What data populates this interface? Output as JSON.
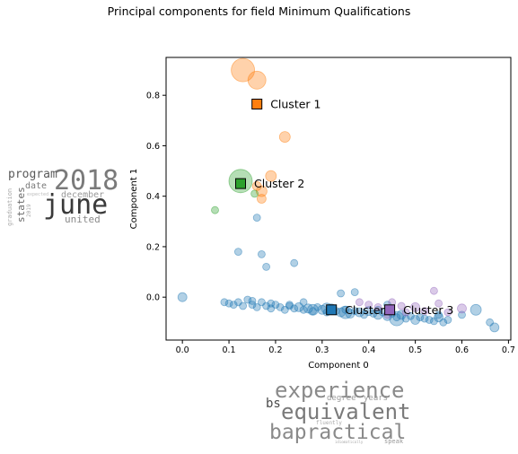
{
  "figure_title": "Principal components for field Minimum Qualifications",
  "chart_data": {
    "type": "scatter",
    "title": "Principal components for field Minimum Qualifications",
    "xlabel": "Component 0",
    "ylabel": "Component 1",
    "xlim": [
      -0.035,
      0.705
    ],
    "ylim": [
      -0.17,
      0.95
    ],
    "xticks": [
      0.0,
      0.1,
      0.2,
      0.3,
      0.4,
      0.5,
      0.6,
      0.7
    ],
    "yticks": [
      0.0,
      0.2,
      0.4,
      0.6,
      0.8
    ],
    "xtick_labels": [
      "0.0",
      "0.1",
      "0.2",
      "0.3",
      "0.4",
      "0.5",
      "0.6",
      "0.7"
    ],
    "ytick_labels": [
      "0.0",
      "0.2",
      "0.4",
      "0.6",
      "0.8"
    ],
    "grid": false,
    "series": [
      {
        "color": "#1f77b4",
        "points": [
          [
            0.0,
            0.0,
            5
          ],
          [
            0.09,
            -0.02,
            4
          ],
          [
            0.1,
            -0.025,
            4
          ],
          [
            0.11,
            -0.03,
            4
          ],
          [
            0.12,
            -0.02,
            4
          ],
          [
            0.13,
            -0.035,
            4
          ],
          [
            0.14,
            -0.01,
            4
          ],
          [
            0.15,
            -0.03,
            4
          ],
          [
            0.16,
            -0.04,
            4
          ],
          [
            0.17,
            -0.02,
            4
          ],
          [
            0.18,
            -0.035,
            4
          ],
          [
            0.19,
            -0.045,
            4
          ],
          [
            0.2,
            -0.03,
            4
          ],
          [
            0.21,
            -0.04,
            4
          ],
          [
            0.22,
            -0.05,
            4
          ],
          [
            0.23,
            -0.035,
            4
          ],
          [
            0.24,
            -0.045,
            4
          ],
          [
            0.25,
            -0.04,
            5
          ],
          [
            0.26,
            -0.05,
            4
          ],
          [
            0.27,
            -0.045,
            5
          ],
          [
            0.28,
            -0.055,
            4
          ],
          [
            0.29,
            -0.04,
            4
          ],
          [
            0.3,
            -0.05,
            5
          ],
          [
            0.31,
            -0.06,
            4
          ],
          [
            0.32,
            -0.045,
            5
          ],
          [
            0.33,
            -0.055,
            4
          ],
          [
            0.34,
            -0.06,
            5
          ],
          [
            0.35,
            -0.05,
            4
          ],
          [
            0.36,
            -0.065,
            5
          ],
          [
            0.37,
            -0.055,
            4
          ],
          [
            0.38,
            -0.06,
            5
          ],
          [
            0.39,
            -0.07,
            4
          ],
          [
            0.4,
            -0.055,
            5
          ],
          [
            0.41,
            -0.065,
            4
          ],
          [
            0.42,
            -0.07,
            5
          ],
          [
            0.43,
            -0.06,
            4
          ],
          [
            0.44,
            -0.075,
            5
          ],
          [
            0.45,
            -0.065,
            4
          ],
          [
            0.46,
            -0.08,
            4
          ],
          [
            0.47,
            -0.07,
            5
          ],
          [
            0.48,
            -0.085,
            4
          ],
          [
            0.49,
            -0.075,
            4
          ],
          [
            0.5,
            -0.09,
            5
          ],
          [
            0.51,
            -0.08,
            4
          ],
          [
            0.52,
            -0.085,
            4
          ],
          [
            0.53,
            -0.09,
            4
          ],
          [
            0.54,
            -0.095,
            4
          ],
          [
            0.55,
            -0.08,
            5
          ],
          [
            0.56,
            -0.1,
            4
          ],
          [
            0.57,
            -0.09,
            4
          ],
          [
            0.6,
            -0.07,
            4
          ],
          [
            0.63,
            -0.05,
            6
          ],
          [
            0.66,
            -0.1,
            4
          ],
          [
            0.67,
            -0.12,
            5
          ],
          [
            0.34,
            0.015,
            4
          ],
          [
            0.37,
            0.02,
            4
          ],
          [
            0.26,
            -0.02,
            4
          ],
          [
            0.44,
            -0.03,
            4
          ],
          [
            0.55,
            -0.07,
            4
          ],
          [
            0.35,
            -0.06,
            7
          ],
          [
            0.46,
            -0.085,
            8
          ],
          [
            0.28,
            -0.05,
            6
          ],
          [
            0.16,
            0.315,
            4
          ],
          [
            0.12,
            0.18,
            4
          ],
          [
            0.17,
            0.17,
            4
          ],
          [
            0.18,
            0.12,
            4
          ],
          [
            0.24,
            0.135,
            4
          ],
          [
            0.31,
            -0.045,
            6
          ],
          [
            0.23,
            -0.03,
            4
          ],
          [
            0.19,
            -0.025,
            4
          ],
          [
            0.15,
            -0.015,
            4
          ],
          [
            0.42,
            -0.05,
            4
          ]
        ]
      },
      {
        "color": "#ff7f0e",
        "points": [
          [
            0.13,
            0.9,
            13
          ],
          [
            0.16,
            0.86,
            10
          ],
          [
            0.22,
            0.635,
            6
          ],
          [
            0.19,
            0.48,
            6
          ],
          [
            0.17,
            0.42,
            6
          ],
          [
            0.17,
            0.39,
            5
          ],
          [
            0.16,
            0.44,
            5
          ]
        ]
      },
      {
        "color": "#2ca02c",
        "points": [
          [
            0.125,
            0.46,
            13
          ],
          [
            0.07,
            0.345,
            4
          ],
          [
            0.155,
            0.41,
            4
          ]
        ]
      },
      {
        "color": "#9467bd",
        "points": [
          [
            0.4,
            -0.03,
            4
          ],
          [
            0.42,
            -0.04,
            4
          ],
          [
            0.45,
            -0.02,
            4
          ],
          [
            0.47,
            -0.035,
            4
          ],
          [
            0.5,
            -0.04,
            5
          ],
          [
            0.52,
            -0.055,
            4
          ],
          [
            0.55,
            -0.025,
            4
          ],
          [
            0.57,
            -0.06,
            4
          ],
          [
            0.6,
            -0.045,
            5
          ],
          [
            0.44,
            -0.07,
            4
          ],
          [
            0.48,
            -0.06,
            4
          ],
          [
            0.54,
            0.025,
            4
          ],
          [
            0.38,
            -0.02,
            4
          ]
        ]
      }
    ],
    "clusters": [
      {
        "label": "Cluster 1",
        "x": 0.16,
        "y": 0.765,
        "color": "#ff7f0e"
      },
      {
        "label": "Cluster 2",
        "x": 0.125,
        "y": 0.45,
        "color": "#2ca02c"
      },
      {
        "label": "Cluster 0",
        "x": 0.32,
        "y": -0.05,
        "color": "#1f77b4"
      },
      {
        "label": "Cluster 3",
        "x": 0.445,
        "y": -0.05,
        "color": "#9467bd"
      }
    ]
  },
  "wordclouds": [
    {
      "words": [
        {
          "text": "2018",
          "color": "#7a7a7a"
        },
        {
          "text": "june",
          "color": "#3a3a3a"
        },
        {
          "text": "program",
          "color": "#5a5a5a"
        },
        {
          "text": "date",
          "color": "#7a7a7a"
        },
        {
          "text": "december",
          "color": "#9a9a9a"
        },
        {
          "text": "states",
          "color": "#6a6a6a"
        },
        {
          "text": "united",
          "color": "#8a8a8a"
        },
        {
          "text": "graduation",
          "color": "#aaaaaa"
        },
        {
          "text": "expected",
          "color": "#bbbbbb"
        },
        {
          "text": "2019",
          "color": "#aaaaaa"
        }
      ]
    },
    {
      "words": [
        {
          "text": "experience",
          "color": "#8a8a8a"
        },
        {
          "text": "degree",
          "color": "#9a9a9a"
        },
        {
          "text": "years",
          "color": "#9a9a9a"
        },
        {
          "text": "bs",
          "color": "#4a4a4a"
        },
        {
          "text": "equivalent",
          "color": "#7a7a7a"
        },
        {
          "text": "fluently",
          "color": "#aaaaaa"
        },
        {
          "text": "bapractical",
          "color": "#8a8a8a"
        },
        {
          "text": "idiomatically",
          "color": "#aaaaaa"
        },
        {
          "text": "speak",
          "color": "#9a9a9a"
        }
      ]
    }
  ]
}
